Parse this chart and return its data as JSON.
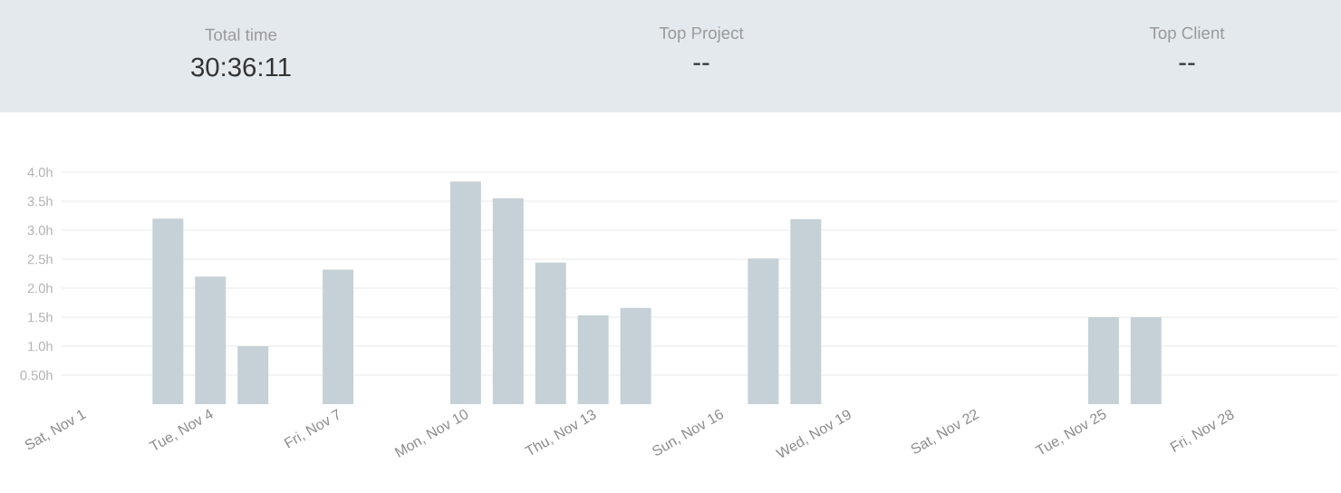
{
  "chart_data": {
    "type": "bar",
    "annotations": [
      "Total time",
      "30:36:11",
      "Top Project",
      "--",
      "Top Client",
      "--"
    ],
    "categories": [
      "Sat, Nov 1",
      null,
      null,
      "Tue, Nov 4",
      null,
      null,
      "Fri, Nov 7",
      null,
      null,
      "Mon, Nov 10",
      null,
      null,
      "Thu, Nov 13",
      null,
      null,
      "Sun, Nov 16",
      null,
      null,
      "Wed, Nov 19",
      null,
      null,
      "Sat, Nov 22",
      null,
      null,
      "Tue, Nov 25",
      null,
      null,
      "Fri, Nov 28",
      null,
      null
    ],
    "values": [
      0,
      0,
      3.2,
      2.2,
      1.0,
      0,
      2.32,
      0,
      0,
      3.84,
      3.55,
      2.44,
      1.53,
      1.66,
      0,
      0,
      2.51,
      3.19,
      0,
      0,
      0,
      0,
      0,
      0,
      1.5,
      1.5,
      0,
      0,
      0,
      0
    ],
    "color": "#c6d1d7",
    "ylim": [
      0,
      4.0
    ],
    "yticks": [
      {
        "value": 0.5,
        "label": "0.50h"
      },
      {
        "value": 1.0,
        "label": "1.0h"
      },
      {
        "value": 1.5,
        "label": "1.5h"
      },
      {
        "value": 2.0,
        "label": "2.0h"
      },
      {
        "value": 2.5,
        "label": "2.5h"
      },
      {
        "value": 3.0,
        "label": "3.0h"
      },
      {
        "value": 3.5,
        "label": "3.5h"
      },
      {
        "value": 4.0,
        "label": "4.0h"
      }
    ],
    "grid": "y"
  }
}
